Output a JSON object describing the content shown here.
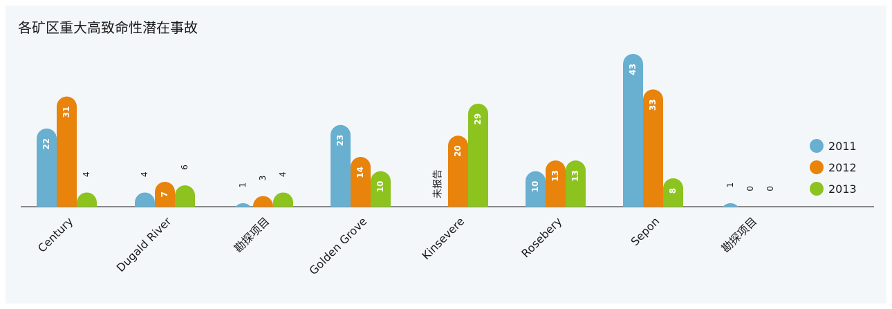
{
  "chart_data": {
    "type": "bar",
    "title": "各矿区重大高致命性潜在事故",
    "categories": [
      "Century",
      "Dugald River",
      "勘探项目",
      "Golden Grove",
      "Kinsevere",
      "Rosebery",
      "Sepon",
      "勘探项目"
    ],
    "series": [
      {
        "name": "2011",
        "color": "#68afd0",
        "values": [
          22,
          4,
          1,
          23,
          null,
          10,
          43,
          1
        ]
      },
      {
        "name": "2012",
        "color": "#e8830c",
        "values": [
          31,
          7,
          3,
          14,
          20,
          13,
          33,
          0
        ]
      },
      {
        "name": "2013",
        "color": "#8cc31f",
        "values": [
          4,
          6,
          4,
          10,
          29,
          13,
          8,
          0
        ]
      }
    ],
    "annotations": [
      {
        "category_index": 4,
        "series_index": 0,
        "text": "未报告"
      }
    ],
    "legend_position": "right",
    "ylim": [
      0,
      43
    ],
    "grid": false
  }
}
